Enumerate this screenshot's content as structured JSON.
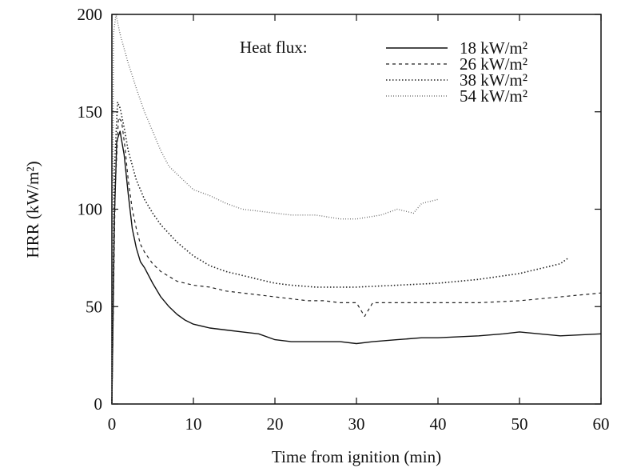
{
  "chart_data": {
    "type": "line",
    "xlabel": "Time from ignition (min)",
    "ylabel": "HRR (kW/m²)",
    "xlim": [
      0,
      60
    ],
    "ylim": [
      0,
      200
    ],
    "xticks": [
      "0",
      "10",
      "20",
      "30",
      "40",
      "50",
      "60"
    ],
    "yticks": [
      "0",
      "50",
      "100",
      "150",
      "200"
    ],
    "grid": false,
    "legend": {
      "title": "Heat flux:",
      "placement": "top-right",
      "entries": [
        "18 kW/m²",
        "26 kW/m²",
        "38 kW/m²",
        "54 kW/m²"
      ]
    },
    "series": [
      {
        "name": "18 kW/m²",
        "x": [
          0,
          0.3,
          0.6,
          1.0,
          1.5,
          2,
          2.5,
          3,
          3.5,
          4,
          5,
          6,
          7,
          8,
          9,
          10,
          12,
          14,
          16,
          18,
          20,
          22,
          24,
          26,
          28,
          30,
          32,
          35,
          38,
          40,
          45,
          48,
          50,
          55,
          60
        ],
        "y": [
          0,
          95,
          135,
          140,
          128,
          108,
          90,
          80,
          73,
          70,
          62,
          55,
          50,
          46,
          43,
          41,
          39,
          38,
          37,
          36,
          33,
          32,
          32,
          32,
          32,
          31,
          32,
          33,
          34,
          34,
          35,
          36,
          37,
          35,
          36
        ],
        "dash": "solid"
      },
      {
        "name": "26 kW/m²",
        "x": [
          0,
          0.4,
          0.8,
          1.2,
          1.6,
          2,
          2.5,
          3,
          3.5,
          4,
          5,
          6,
          8,
          10,
          12,
          14,
          16,
          18,
          20,
          22,
          24,
          26,
          28,
          30,
          31,
          32,
          35,
          40,
          45,
          50,
          55,
          60
        ],
        "y": [
          0,
          110,
          147,
          145,
          132,
          115,
          100,
          90,
          82,
          78,
          72,
          68,
          63,
          61,
          60,
          58,
          57,
          56,
          55,
          54,
          53,
          53,
          52,
          52,
          45,
          52,
          52,
          52,
          52,
          53,
          55,
          57
        ],
        "dash": "4 4"
      },
      {
        "name": "38 kW/m²",
        "x": [
          0,
          0.3,
          0.7,
          1.0,
          1.5,
          2,
          3,
          4,
          5,
          6,
          8,
          10,
          12,
          14,
          16,
          18,
          20,
          22,
          25,
          28,
          30,
          35,
          40,
          45,
          50,
          55,
          56
        ],
        "y": [
          0,
          120,
          155,
          152,
          142,
          130,
          115,
          105,
          98,
          92,
          83,
          76,
          71,
          68,
          66,
          64,
          62,
          61,
          60,
          60,
          60,
          61,
          62,
          64,
          67,
          72,
          75
        ],
        "dash": "1.5 2.5"
      },
      {
        "name": "54 kW/m²",
        "x": [
          0,
          0.2,
          0.5,
          1,
          2,
          3,
          4,
          5,
          6,
          7,
          8,
          9,
          10,
          12,
          14,
          16,
          18,
          20,
          22,
          25,
          28,
          30,
          33,
          35,
          37,
          38,
          40
        ],
        "y": [
          0,
          190,
          200,
          190,
          175,
          162,
          150,
          140,
          130,
          122,
          118,
          114,
          110,
          107,
          103,
          100,
          99,
          98,
          97,
          97,
          95,
          95,
          97,
          100,
          98,
          103,
          105
        ],
        "dash": "0.8 2.2"
      }
    ]
  }
}
